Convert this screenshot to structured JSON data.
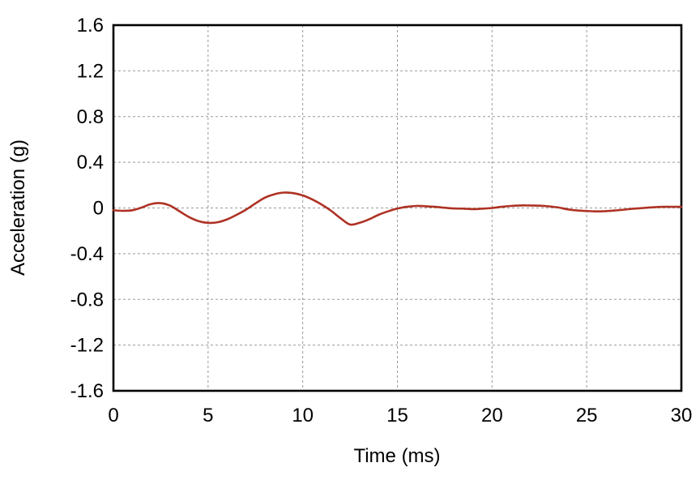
{
  "figure": {
    "background": "#ffffff"
  },
  "chart_data": {
    "type": "line",
    "title": "",
    "xlabel": "Time (ms)",
    "ylabel": "Acceleration (g)",
    "xlim": [
      0,
      30
    ],
    "ylim": [
      -1.6,
      1.6
    ],
    "xticks": [
      0,
      5,
      10,
      15,
      20,
      25,
      30
    ],
    "xtick_labels": [
      "0",
      "5",
      "10",
      "15",
      "20",
      "25",
      "30"
    ],
    "yticks": [
      1.6,
      1.2,
      0.8,
      0.4,
      0,
      -0.4,
      -0.8,
      -1.2,
      -1.6
    ],
    "ytick_labels": [
      "1.6",
      "1.2",
      "0.8",
      "0.4",
      "0",
      "-0.4",
      "-0.8",
      "-1.2",
      "-1.6"
    ],
    "grid": "dashed",
    "grid_color": "#999999",
    "frame_color": "#000000",
    "legend_position": "none",
    "series": [
      {
        "name": "acceleration",
        "color": "#ae3224",
        "x": [
          0,
          0.5,
          1,
          1.5,
          2,
          2.5,
          3,
          3.5,
          4,
          4.5,
          5,
          5.5,
          6,
          6.5,
          7,
          7.5,
          8,
          8.5,
          9,
          9.5,
          10,
          10.5,
          11,
          11.5,
          12,
          12.5,
          13,
          13.5,
          14,
          14.5,
          15,
          15.5,
          16,
          16.5,
          17,
          17.5,
          18,
          18.5,
          19,
          19.5,
          20,
          20.5,
          21,
          21.5,
          22,
          22.5,
          23,
          23.5,
          24,
          24.5,
          25,
          25.5,
          26,
          26.5,
          27,
          27.5,
          28,
          28.5,
          29,
          29.5,
          30
        ],
        "y": [
          -0.02,
          -0.025,
          -0.02,
          0.005,
          0.035,
          0.042,
          0.02,
          -0.03,
          -0.08,
          -0.115,
          -0.13,
          -0.125,
          -0.1,
          -0.06,
          -0.015,
          0.04,
          0.09,
          0.12,
          0.135,
          0.13,
          0.11,
          0.075,
          0.03,
          -0.025,
          -0.09,
          -0.145,
          -0.13,
          -0.1,
          -0.06,
          -0.03,
          -0.005,
          0.01,
          0.018,
          0.015,
          0.01,
          0.002,
          -0.004,
          -0.006,
          -0.01,
          -0.006,
          0,
          0.01,
          0.018,
          0.022,
          0.022,
          0.02,
          0.014,
          0.004,
          -0.012,
          -0.022,
          -0.026,
          -0.03,
          -0.028,
          -0.022,
          -0.014,
          -0.006,
          0,
          0.006,
          0.01,
          0.01,
          0.01
        ]
      }
    ]
  }
}
